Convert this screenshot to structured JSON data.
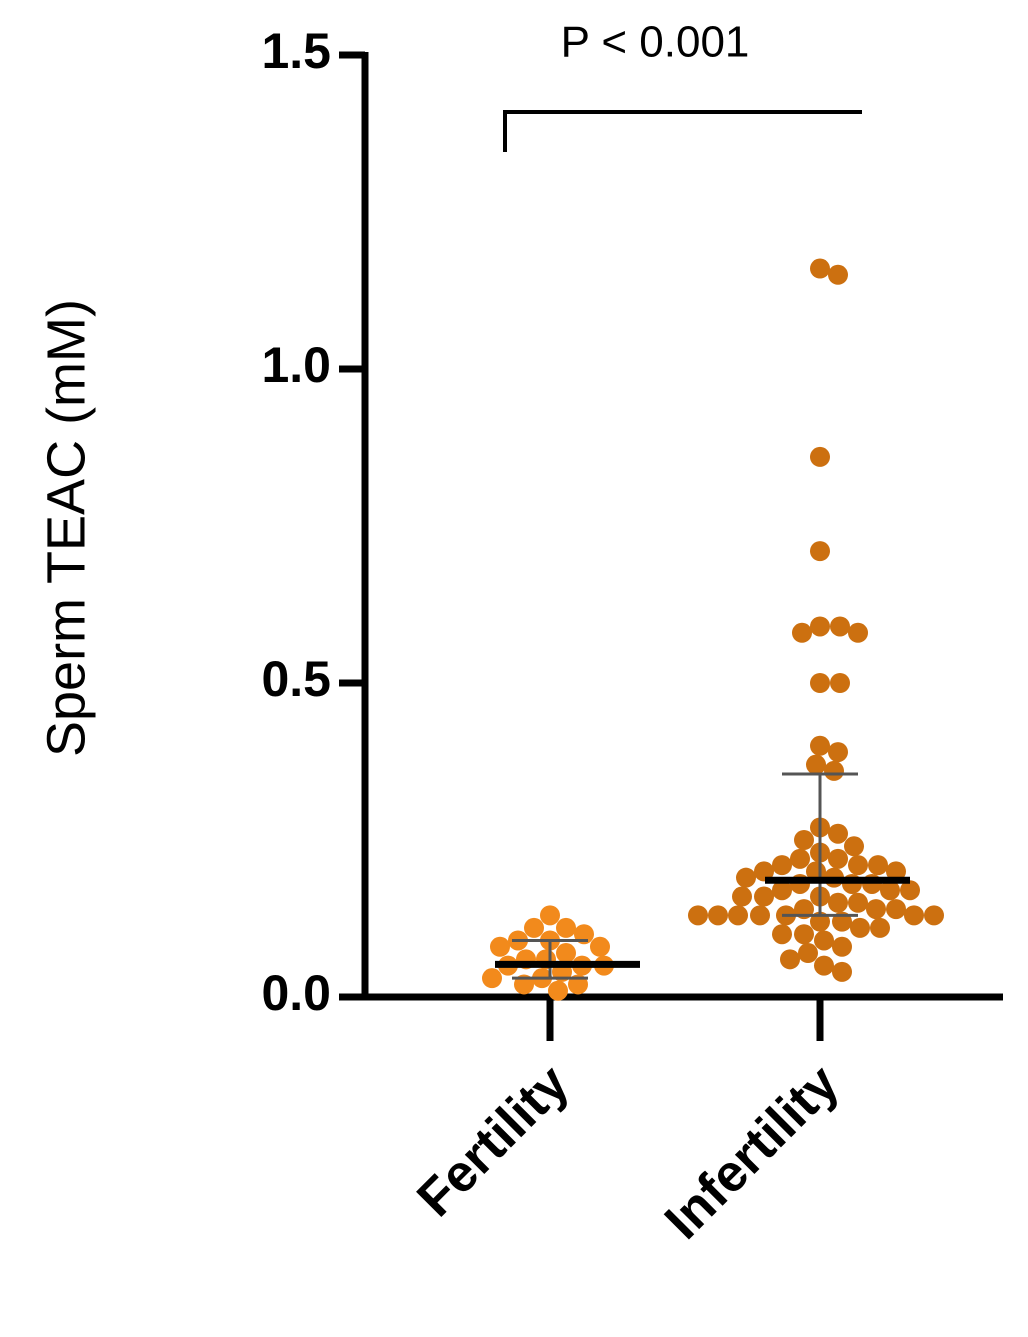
{
  "chart_data": {
    "type": "strip",
    "ylabel": "Sperm TEAC (mM)",
    "annotation": "P < 0.001",
    "ylim": [
      0,
      1.5
    ],
    "yticks": [
      {
        "value": 0,
        "label": "0.0"
      },
      {
        "value": 0.5,
        "label": "0.5"
      },
      {
        "value": 1,
        "label": "1.0"
      },
      {
        "value": 1.5,
        "label": "1.5"
      }
    ],
    "groups": [
      {
        "name": "Fertility",
        "color": "#f28a1c",
        "median": 0.052,
        "q1": 0.03,
        "q3": 0.09,
        "values": [
          0.13,
          0.11,
          0.11,
          0.1,
          0.09,
          0.09,
          0.08,
          0.08,
          0.07,
          0.06,
          0.06,
          0.05,
          0.05,
          0.05,
          0.04,
          0.03,
          0.03,
          0.02,
          0.02,
          0.01
        ]
      },
      {
        "name": "Infertility",
        "color": "#cc7010",
        "median": 0.186,
        "q1": 0.13,
        "q3": 0.355,
        "values": [
          1.16,
          1.15,
          0.86,
          0.71,
          0.59,
          0.59,
          0.58,
          0.58,
          0.5,
          0.5,
          0.4,
          0.39,
          0.37,
          0.36,
          0.27,
          0.26,
          0.25,
          0.24,
          0.23,
          0.22,
          0.22,
          0.21,
          0.21,
          0.21,
          0.2,
          0.2,
          0.2,
          0.19,
          0.19,
          0.18,
          0.18,
          0.18,
          0.17,
          0.17,
          0.17,
          0.16,
          0.16,
          0.16,
          0.15,
          0.15,
          0.14,
          0.14,
          0.14,
          0.13,
          0.13,
          0.13,
          0.13,
          0.13,
          0.13,
          0.13,
          0.12,
          0.12,
          0.11,
          0.11,
          0.1,
          0.1,
          0.09,
          0.08,
          0.07,
          0.06,
          0.05,
          0.04
        ]
      }
    ]
  }
}
